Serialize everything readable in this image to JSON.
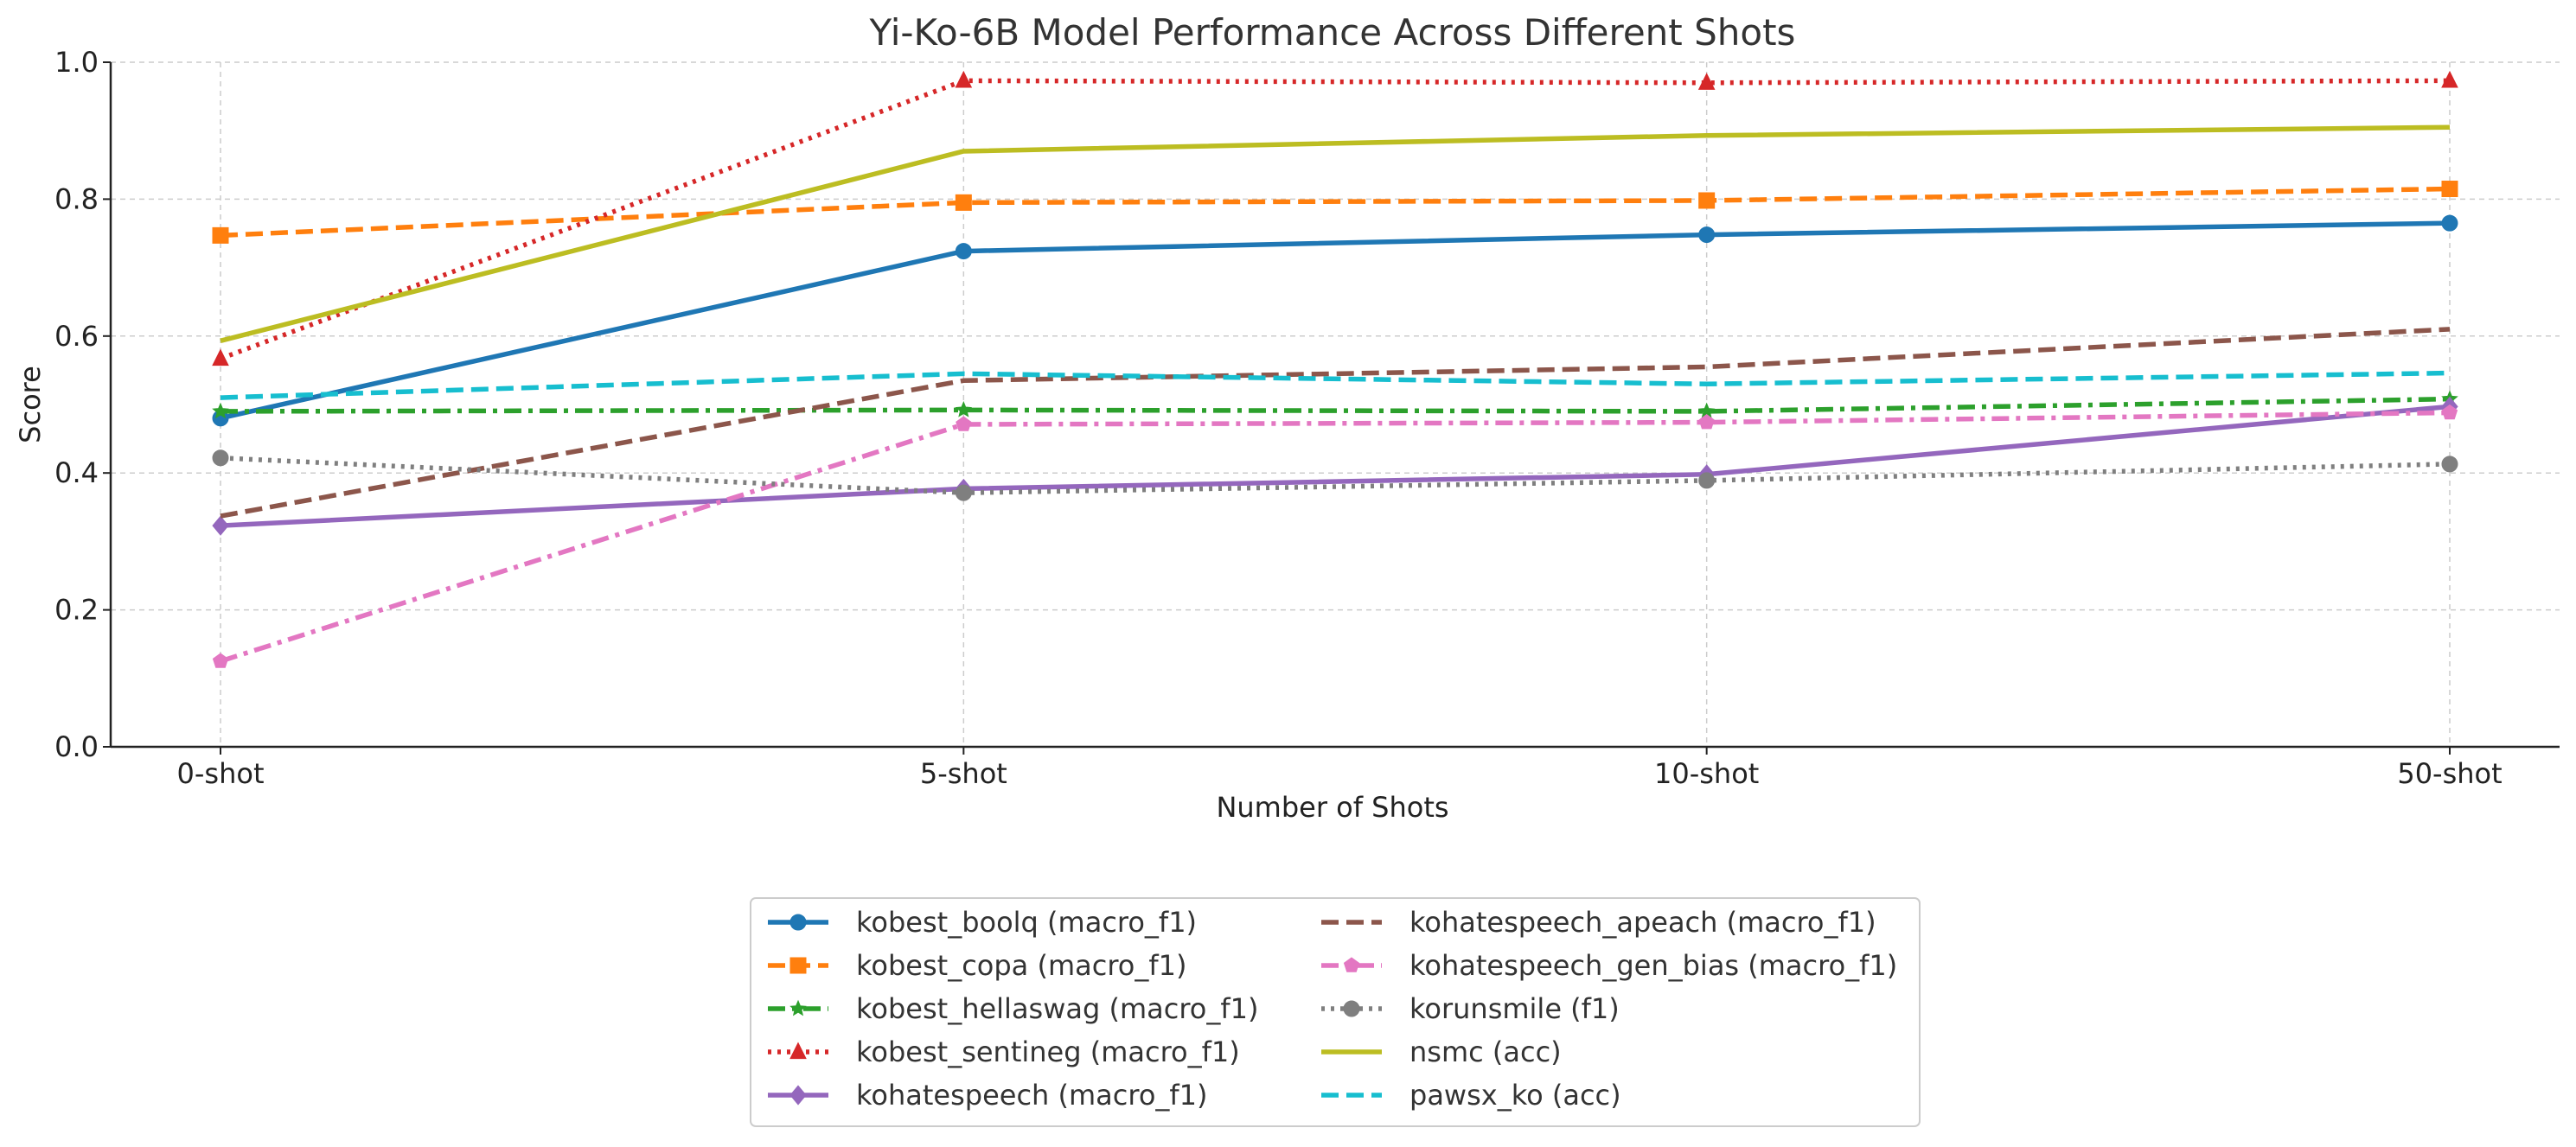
{
  "chart_data": {
    "type": "line",
    "title": "Yi-Ko-6B Model Performance Across Different Shots",
    "xlabel": "Number of Shots",
    "ylabel": "Score",
    "categories": [
      "0-shot",
      "5-shot",
      "10-shot",
      "50-shot"
    ],
    "ylim": [
      0,
      1.0
    ],
    "yticks": [
      0.0,
      0.2,
      0.4,
      0.6,
      0.8,
      1.0
    ],
    "ytick_labels": [
      "0.0",
      "0.2",
      "0.4",
      "0.6",
      "0.8",
      "1.0"
    ],
    "grid": true,
    "legend_position": "bottom-center",
    "legend_columns": 2,
    "series": [
      {
        "name": "kobest_boolq (macro_f1)",
        "values": [
          0.48,
          0.724,
          0.748,
          0.765
        ],
        "color": "#1f77b4",
        "dash": "solid",
        "marker": "circle"
      },
      {
        "name": "kobest_copa (macro_f1)",
        "values": [
          0.747,
          0.795,
          0.798,
          0.815
        ],
        "color": "#ff7f0e",
        "dash": "dashed",
        "marker": "square"
      },
      {
        "name": "kobest_hellaswag (macro_f1)",
        "values": [
          0.49,
          0.492,
          0.49,
          0.508
        ],
        "color": "#2ca02c",
        "dash": "dashdot",
        "marker": "star"
      },
      {
        "name": "kobest_sentineg (macro_f1)",
        "values": [
          0.567,
          0.973,
          0.97,
          0.973
        ],
        "color": "#d62728",
        "dash": "dotted",
        "marker": "triangle"
      },
      {
        "name": "kohatespeech (macro_f1)",
        "values": [
          0.323,
          0.377,
          0.398,
          0.497
        ],
        "color": "#9467bd",
        "dash": "solid",
        "marker": "diamond"
      },
      {
        "name": "kohatespeech_apeach (macro_f1)",
        "values": [
          0.337,
          0.535,
          0.555,
          0.61
        ],
        "color": "#8c564b",
        "dash": "dashed",
        "marker": "none"
      },
      {
        "name": "kohatespeech_gen_bias (macro_f1)",
        "values": [
          0.125,
          0.471,
          0.474,
          0.488
        ],
        "color": "#e377c2",
        "dash": "dashdot",
        "marker": "pentagon"
      },
      {
        "name": "korunsmile (f1)",
        "values": [
          0.422,
          0.371,
          0.389,
          0.413
        ],
        "color": "#7f7f7f",
        "dash": "dotted",
        "marker": "circle"
      },
      {
        "name": "nsmc (acc)",
        "values": [
          0.593,
          0.87,
          0.893,
          0.905
        ],
        "color": "#bcbd22",
        "dash": "solid",
        "marker": "none"
      },
      {
        "name": "pawsx_ko (acc)",
        "values": [
          0.51,
          0.545,
          0.53,
          0.546
        ],
        "color": "#17becf",
        "dash": "dashed",
        "marker": "none"
      }
    ]
  }
}
